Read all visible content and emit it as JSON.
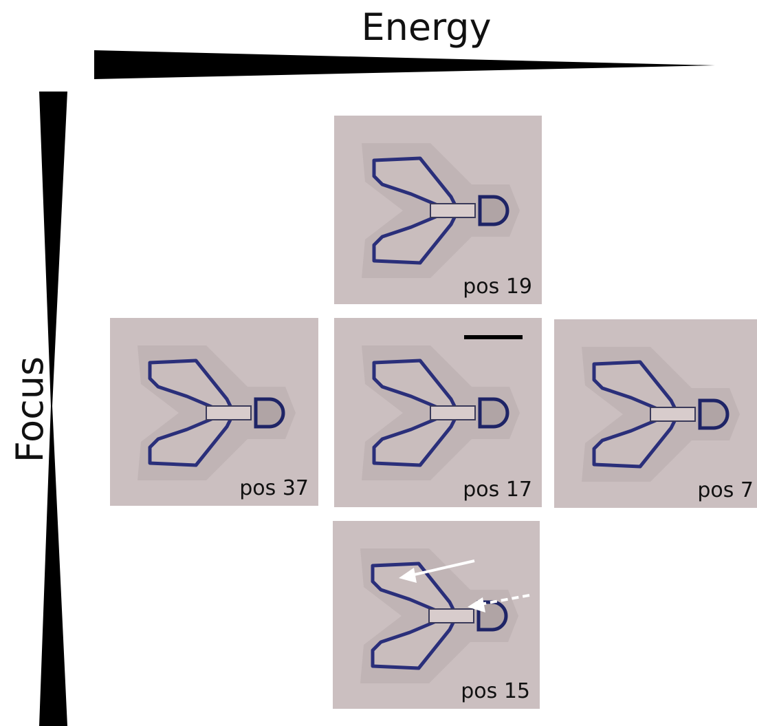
{
  "axes": {
    "horizontal": "Energy",
    "vertical": "Focus"
  },
  "panels": [
    {
      "label": "pos 19"
    },
    {
      "label": "pos 37"
    },
    {
      "label": "pos 17"
    },
    {
      "label": "pos 7"
    },
    {
      "label": "pos 15"
    }
  ]
}
